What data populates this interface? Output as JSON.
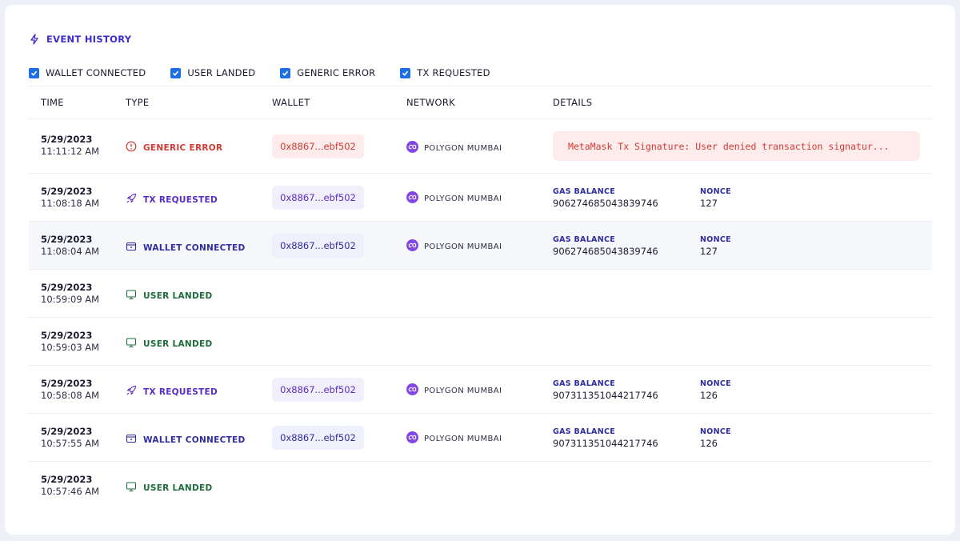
{
  "header": {
    "title": "EVENT HISTORY",
    "icon": "lightning-icon",
    "accent": "#3d2bd1"
  },
  "filters": [
    {
      "label": "WALLET CONNECTED",
      "checked": true
    },
    {
      "label": "USER LANDED",
      "checked": true
    },
    {
      "label": "GENERIC ERROR",
      "checked": true
    },
    {
      "label": "TX REQUESTED",
      "checked": true
    }
  ],
  "columns": {
    "time": "TIME",
    "type": "TYPE",
    "wallet": "WALLET",
    "network": "NETWORK",
    "details": "DETAILS"
  },
  "labels": {
    "gas": "GAS BALANCE",
    "nonce": "NONCE"
  },
  "rows": [
    {
      "date": "5/29/2023",
      "time": "11:11:12 AM",
      "type": "GENERIC ERROR",
      "kind": "error",
      "icon": "alert-circle-icon",
      "wallet": "0x8867...ebf502",
      "network": "POLYGON MUMBAI",
      "error": "MetaMask Tx Signature: User denied transaction signatur..."
    },
    {
      "date": "5/29/2023",
      "time": "11:08:18 AM",
      "type": "TX REQUESTED",
      "kind": "tx",
      "icon": "rocket-icon",
      "wallet": "0x8867...ebf502",
      "network": "POLYGON MUMBAI",
      "gas": "906274685043839746",
      "nonce": "127"
    },
    {
      "date": "5/29/2023",
      "time": "11:08:04 AM",
      "type": "WALLET CONNECTED",
      "kind": "wallet",
      "icon": "wallet-icon",
      "wallet": "0x8867...ebf502",
      "network": "POLYGON MUMBAI",
      "gas": "906274685043839746",
      "nonce": "127",
      "highlighted": true
    },
    {
      "date": "5/29/2023",
      "time": "10:59:09 AM",
      "type": "USER LANDED",
      "kind": "landed",
      "icon": "monitor-icon"
    },
    {
      "date": "5/29/2023",
      "time": "10:59:03 AM",
      "type": "USER LANDED",
      "kind": "landed",
      "icon": "monitor-icon"
    },
    {
      "date": "5/29/2023",
      "time": "10:58:08 AM",
      "type": "TX REQUESTED",
      "kind": "tx",
      "icon": "rocket-icon",
      "wallet": "0x8867...ebf502",
      "network": "POLYGON MUMBAI",
      "gas": "907311351044217746",
      "nonce": "126"
    },
    {
      "date": "5/29/2023",
      "time": "10:57:55 AM",
      "type": "WALLET CONNECTED",
      "kind": "wallet",
      "icon": "wallet-icon",
      "wallet": "0x8867...ebf502",
      "network": "POLYGON MUMBAI",
      "gas": "907311351044217746",
      "nonce": "126"
    },
    {
      "date": "5/29/2023",
      "time": "10:57:46 AM",
      "type": "USER LANDED",
      "kind": "landed",
      "icon": "monitor-icon"
    }
  ],
  "colors": {
    "error": "#d23a33",
    "tx": "#5a2bc6",
    "wallet": "#2e2ea0",
    "landed": "#1f6b3a",
    "checkbox": "#1d6fe6",
    "polygon": "#8247e5"
  }
}
